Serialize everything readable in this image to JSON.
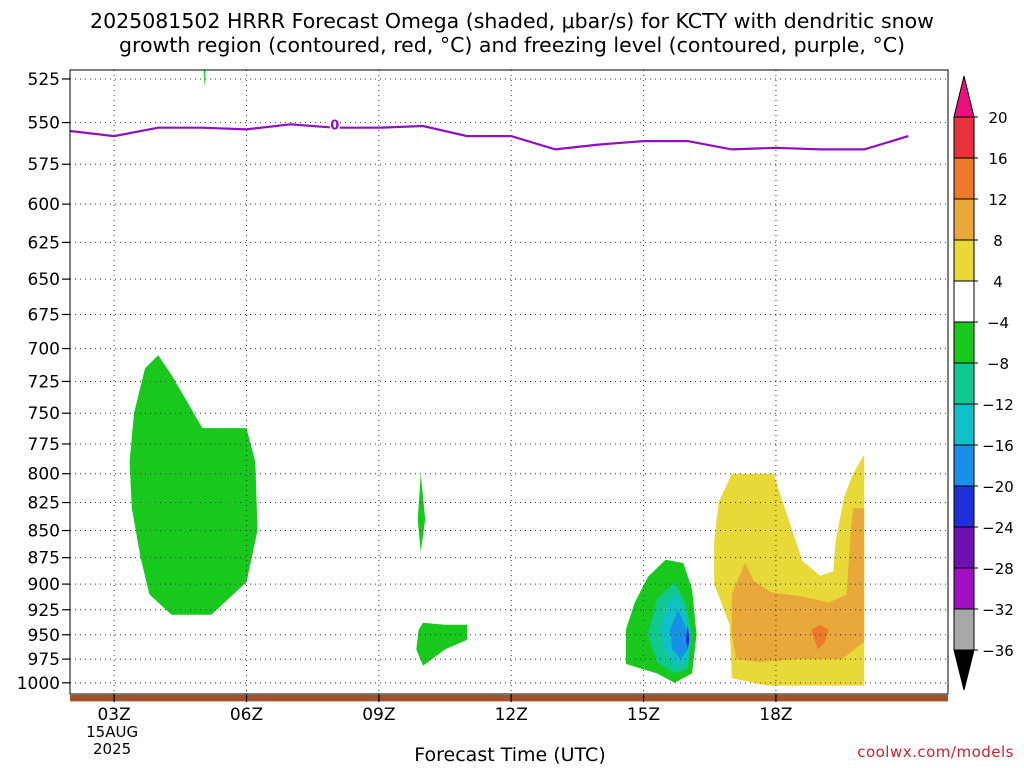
{
  "title": {
    "line1": "2025081502 HRRR Forecast Omega (shaded, μbar/s) for KCTY with dendritic snow",
    "line2": "growth region (contoured, red, °C) and freezing level (contoured, purple, °C)"
  },
  "xlabel": "Forecast Time (UTC)",
  "credit": "coolwx.com/models",
  "chart_data": {
    "type": "heatmap",
    "x_axis": {
      "quantity": "forecast time (UTC hour)",
      "range": [
        2,
        21.9
      ],
      "ticks": [
        {
          "value": 3,
          "label": "03Z",
          "sub1": "15AUG",
          "sub2": "2025"
        },
        {
          "value": 6,
          "label": "06Z"
        },
        {
          "value": 9,
          "label": "09Z"
        },
        {
          "value": 12,
          "label": "12Z"
        },
        {
          "value": 15,
          "label": "15Z"
        },
        {
          "value": 18,
          "label": "18Z"
        }
      ]
    },
    "y_axis": {
      "quantity": "pressure (hPa)",
      "scale": "log",
      "inverted": true,
      "range": [
        1012,
        520
      ],
      "ticks": [
        525,
        550,
        575,
        600,
        625,
        650,
        675,
        700,
        725,
        750,
        775,
        800,
        825,
        850,
        875,
        900,
        925,
        950,
        975,
        1000
      ]
    },
    "grid": true,
    "grid_style": "dotted",
    "colorbar": {
      "placement": "right",
      "labels": [
        "20",
        "16",
        "12",
        "8",
        "4",
        "−4",
        "−8",
        "−12",
        "−16",
        "−20",
        "−24",
        "−28",
        "−32",
        "−36"
      ],
      "bins": [
        {
          "range": "above 20",
          "color": "#e8117e"
        },
        {
          "range": "16 to 20",
          "color": "#e8313a"
        },
        {
          "range": "12 to 16",
          "color": "#ec7a2a"
        },
        {
          "range": "8 to 12",
          "color": "#e8a83a"
        },
        {
          "range": "4 to 8",
          "color": "#e8d838"
        },
        {
          "range": "-4 to 4",
          "color": "#ffffff"
        },
        {
          "range": "-8 to -4",
          "color": "#18c81c"
        },
        {
          "range": "-12 to -8",
          "color": "#10c890"
        },
        {
          "range": "-16 to -12",
          "color": "#10c0c8"
        },
        {
          "range": "-20 to -16",
          "color": "#1890e8"
        },
        {
          "range": "-24 to -20",
          "color": "#2030d8"
        },
        {
          "range": "-28 to -24",
          "color": "#7010b0"
        },
        {
          "range": "-32 to -28",
          "color": "#a010c0"
        },
        {
          "range": "-36 to -32",
          "color": "#a8a8a8"
        },
        {
          "range": "below -36",
          "color": "#000000"
        }
      ]
    },
    "freezing_level": {
      "color": "#9010c0",
      "label": "0",
      "label_at": [
        8,
        551
      ],
      "points": [
        [
          2,
          555
        ],
        [
          3,
          558
        ],
        [
          4,
          553
        ],
        [
          5,
          553
        ],
        [
          6,
          554
        ],
        [
          7,
          551
        ],
        [
          8,
          553
        ],
        [
          9,
          553
        ],
        [
          10,
          552
        ],
        [
          11,
          558
        ],
        [
          12,
          558
        ],
        [
          13,
          566
        ],
        [
          14,
          563
        ],
        [
          15,
          561
        ],
        [
          16,
          561
        ],
        [
          17,
          566
        ],
        [
          18,
          565
        ],
        [
          19,
          566
        ],
        [
          20,
          566
        ],
        [
          21,
          558
        ]
      ]
    },
    "terrain": {
      "color": "#a0522d",
      "from_pressure": 1013,
      "to_pressure": 1020
    },
    "shaded_regions": [
      {
        "color": "#18c81c",
        "points": [
          [
            5.03,
            520
          ],
          [
            5.07,
            520
          ],
          [
            5.05,
            530
          ]
        ]
      },
      {
        "color": "#18c81c",
        "points": [
          [
            4.0,
            705
          ],
          [
            4.3,
            720
          ],
          [
            5.0,
            762
          ],
          [
            6.0,
            762
          ],
          [
            6.2,
            790
          ],
          [
            6.25,
            850
          ],
          [
            6.0,
            898
          ],
          [
            5.5,
            918
          ],
          [
            5.2,
            930
          ],
          [
            4.3,
            930
          ],
          [
            3.8,
            910
          ],
          [
            3.6,
            875
          ],
          [
            3.4,
            830
          ],
          [
            3.35,
            790
          ],
          [
            3.45,
            750
          ],
          [
            3.7,
            715
          ]
        ]
      },
      {
        "color": "#18c81c",
        "points": [
          [
            9.95,
            800
          ],
          [
            10.05,
            840
          ],
          [
            9.95,
            870
          ],
          [
            9.88,
            840
          ]
        ]
      },
      {
        "color": "#18c81c",
        "points": [
          [
            9.9,
            945
          ],
          [
            10.0,
            938
          ],
          [
            10.5,
            940
          ],
          [
            11.0,
            940
          ],
          [
            11.0,
            955
          ],
          [
            10.5,
            965
          ],
          [
            10.0,
            982
          ],
          [
            9.85,
            965
          ]
        ]
      },
      {
        "color": "#18c81c",
        "points": [
          [
            15.5,
            877
          ],
          [
            15.9,
            880
          ],
          [
            16.1,
            905
          ],
          [
            16.2,
            950
          ],
          [
            16.1,
            990
          ],
          [
            15.7,
            1000
          ],
          [
            15.3,
            990
          ],
          [
            14.6,
            980
          ],
          [
            14.6,
            945
          ],
          [
            14.8,
            918
          ],
          [
            15.1,
            893
          ]
        ]
      },
      {
        "color": "#10c890",
        "points": [
          [
            15.7,
            898
          ],
          [
            15.95,
            918
          ],
          [
            16.1,
            950
          ],
          [
            16.0,
            985
          ],
          [
            15.7,
            990
          ],
          [
            15.3,
            978
          ],
          [
            15.1,
            950
          ],
          [
            15.3,
            915
          ]
        ]
      },
      {
        "color": "#10c0c8",
        "points": [
          [
            15.75,
            910
          ],
          [
            16.0,
            935
          ],
          [
            16.05,
            960
          ],
          [
            15.95,
            980
          ],
          [
            15.7,
            982
          ],
          [
            15.45,
            965
          ],
          [
            15.4,
            940
          ],
          [
            15.55,
            918
          ]
        ]
      },
      {
        "color": "#1890e8",
        "points": [
          [
            15.78,
            925
          ],
          [
            15.98,
            945
          ],
          [
            16.0,
            965
          ],
          [
            15.85,
            975
          ],
          [
            15.65,
            965
          ],
          [
            15.6,
            945
          ]
        ]
      },
      {
        "color": "#2030d8",
        "points": [
          [
            16.0,
            940
          ],
          [
            16.04,
            955
          ],
          [
            16.0,
            965
          ],
          [
            15.96,
            955
          ]
        ]
      },
      {
        "color": "#e8d838",
        "points": [
          [
            17.0,
            800
          ],
          [
            17.95,
            800
          ],
          [
            18.2,
            830
          ],
          [
            18.6,
            878
          ],
          [
            19.0,
            892
          ],
          [
            19.3,
            888
          ],
          [
            19.35,
            860
          ],
          [
            19.55,
            820
          ],
          [
            19.75,
            800
          ],
          [
            20.0,
            784
          ],
          [
            20.0,
            1003
          ],
          [
            19.0,
            1003
          ],
          [
            17.8,
            1003
          ],
          [
            17.0,
            995
          ],
          [
            16.95,
            940
          ],
          [
            16.6,
            900
          ],
          [
            16.6,
            860
          ],
          [
            16.7,
            825
          ]
        ]
      },
      {
        "color": "#e8a83a",
        "points": [
          [
            17.3,
            880
          ],
          [
            17.5,
            897
          ],
          [
            17.9,
            908
          ],
          [
            18.6,
            912
          ],
          [
            19.2,
            918
          ],
          [
            19.6,
            910
          ],
          [
            19.7,
            850
          ],
          [
            19.75,
            830
          ],
          [
            20.0,
            830
          ],
          [
            20.0,
            957
          ],
          [
            19.5,
            975
          ],
          [
            18.5,
            975
          ],
          [
            17.6,
            978
          ],
          [
            17.1,
            975
          ],
          [
            17.0,
            950
          ],
          [
            17.0,
            910
          ]
        ]
      },
      {
        "color": "#ec7a2a",
        "points": [
          [
            18.8,
            945
          ],
          [
            19.0,
            940
          ],
          [
            19.2,
            945
          ],
          [
            19.1,
            958
          ],
          [
            18.95,
            965
          ]
        ]
      }
    ]
  }
}
